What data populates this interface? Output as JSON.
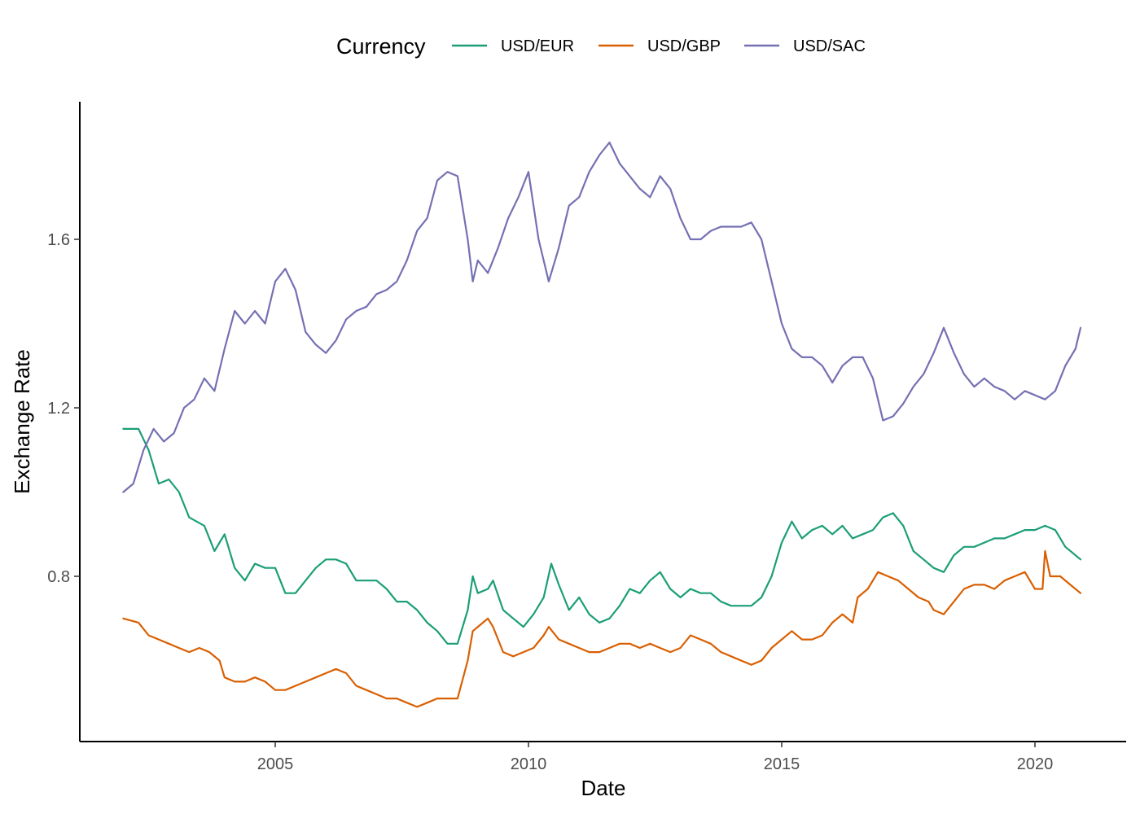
{
  "chart_data": {
    "type": "line",
    "xlabel": "Date",
    "ylabel": "Exchange Rate",
    "legend": {
      "title": "Currency",
      "placement": "top"
    },
    "xlim": [
      2002.0,
      2021.5
    ],
    "ylim": [
      0.45,
      1.9
    ],
    "x_ticks": [
      2005,
      2010,
      2015,
      2020
    ],
    "x_tick_labels": [
      "2005",
      "2010",
      "2015",
      "2020"
    ],
    "y_ticks": [
      0.8,
      1.2,
      1.6
    ],
    "y_tick_labels": [
      "0.8",
      "1.2",
      "1.6"
    ],
    "grid": false,
    "series": [
      {
        "name": "USD/EUR",
        "color": "#1B9E77",
        "points": [
          [
            2002.0,
            1.15
          ],
          [
            2002.3,
            1.15
          ],
          [
            2002.5,
            1.1
          ],
          [
            2002.7,
            1.02
          ],
          [
            2002.9,
            1.03
          ],
          [
            2003.1,
            1.0
          ],
          [
            2003.3,
            0.94
          ],
          [
            2003.6,
            0.92
          ],
          [
            2003.8,
            0.86
          ],
          [
            2004.0,
            0.9
          ],
          [
            2004.2,
            0.82
          ],
          [
            2004.4,
            0.79
          ],
          [
            2004.6,
            0.83
          ],
          [
            2004.8,
            0.82
          ],
          [
            2005.0,
            0.82
          ],
          [
            2005.2,
            0.76
          ],
          [
            2005.4,
            0.76
          ],
          [
            2005.6,
            0.79
          ],
          [
            2005.8,
            0.82
          ],
          [
            2006.0,
            0.84
          ],
          [
            2006.2,
            0.84
          ],
          [
            2006.4,
            0.83
          ],
          [
            2006.6,
            0.79
          ],
          [
            2006.8,
            0.79
          ],
          [
            2007.0,
            0.79
          ],
          [
            2007.2,
            0.77
          ],
          [
            2007.4,
            0.74
          ],
          [
            2007.6,
            0.74
          ],
          [
            2007.8,
            0.72
          ],
          [
            2008.0,
            0.69
          ],
          [
            2008.2,
            0.67
          ],
          [
            2008.4,
            0.64
          ],
          [
            2008.6,
            0.64
          ],
          [
            2008.8,
            0.72
          ],
          [
            2008.9,
            0.8
          ],
          [
            2009.0,
            0.76
          ],
          [
            2009.2,
            0.77
          ],
          [
            2009.3,
            0.79
          ],
          [
            2009.5,
            0.72
          ],
          [
            2009.7,
            0.7
          ],
          [
            2009.9,
            0.68
          ],
          [
            2010.1,
            0.71
          ],
          [
            2010.3,
            0.75
          ],
          [
            2010.45,
            0.83
          ],
          [
            2010.6,
            0.78
          ],
          [
            2010.8,
            0.72
          ],
          [
            2011.0,
            0.75
          ],
          [
            2011.2,
            0.71
          ],
          [
            2011.4,
            0.69
          ],
          [
            2011.6,
            0.7
          ],
          [
            2011.8,
            0.73
          ],
          [
            2012.0,
            0.77
          ],
          [
            2012.2,
            0.76
          ],
          [
            2012.4,
            0.79
          ],
          [
            2012.6,
            0.81
          ],
          [
            2012.8,
            0.77
          ],
          [
            2013.0,
            0.75
          ],
          [
            2013.2,
            0.77
          ],
          [
            2013.4,
            0.76
          ],
          [
            2013.6,
            0.76
          ],
          [
            2013.8,
            0.74
          ],
          [
            2014.0,
            0.73
          ],
          [
            2014.2,
            0.73
          ],
          [
            2014.4,
            0.73
          ],
          [
            2014.6,
            0.75
          ],
          [
            2014.8,
            0.8
          ],
          [
            2015.0,
            0.88
          ],
          [
            2015.2,
            0.93
          ],
          [
            2015.4,
            0.89
          ],
          [
            2015.6,
            0.91
          ],
          [
            2015.8,
            0.92
          ],
          [
            2016.0,
            0.9
          ],
          [
            2016.2,
            0.92
          ],
          [
            2016.4,
            0.89
          ],
          [
            2016.6,
            0.9
          ],
          [
            2016.8,
            0.91
          ],
          [
            2017.0,
            0.94
          ],
          [
            2017.2,
            0.95
          ],
          [
            2017.4,
            0.92
          ],
          [
            2017.6,
            0.86
          ],
          [
            2017.8,
            0.84
          ],
          [
            2018.0,
            0.82
          ],
          [
            2018.2,
            0.81
          ],
          [
            2018.4,
            0.85
          ],
          [
            2018.6,
            0.87
          ],
          [
            2018.8,
            0.87
          ],
          [
            2019.0,
            0.88
          ],
          [
            2019.2,
            0.89
          ],
          [
            2019.4,
            0.89
          ],
          [
            2019.6,
            0.9
          ],
          [
            2019.8,
            0.91
          ],
          [
            2020.0,
            0.91
          ],
          [
            2020.2,
            0.92
          ],
          [
            2020.4,
            0.91
          ],
          [
            2020.6,
            0.87
          ],
          [
            2020.8,
            0.85
          ],
          [
            2020.9,
            0.84
          ]
        ]
      },
      {
        "name": "USD/GBP",
        "color": "#D95F02",
        "points": [
          [
            2002.0,
            0.7
          ],
          [
            2002.3,
            0.69
          ],
          [
            2002.5,
            0.66
          ],
          [
            2002.7,
            0.65
          ],
          [
            2002.9,
            0.64
          ],
          [
            2003.1,
            0.63
          ],
          [
            2003.3,
            0.62
          ],
          [
            2003.5,
            0.63
          ],
          [
            2003.7,
            0.62
          ],
          [
            2003.9,
            0.6
          ],
          [
            2004.0,
            0.56
          ],
          [
            2004.2,
            0.55
          ],
          [
            2004.4,
            0.55
          ],
          [
            2004.6,
            0.56
          ],
          [
            2004.8,
            0.55
          ],
          [
            2005.0,
            0.53
          ],
          [
            2005.2,
            0.53
          ],
          [
            2005.4,
            0.54
          ],
          [
            2005.6,
            0.55
          ],
          [
            2005.8,
            0.56
          ],
          [
            2006.0,
            0.57
          ],
          [
            2006.2,
            0.58
          ],
          [
            2006.4,
            0.57
          ],
          [
            2006.6,
            0.54
          ],
          [
            2006.8,
            0.53
          ],
          [
            2007.0,
            0.52
          ],
          [
            2007.2,
            0.51
          ],
          [
            2007.4,
            0.51
          ],
          [
            2007.6,
            0.5
          ],
          [
            2007.8,
            0.49
          ],
          [
            2008.0,
            0.5
          ],
          [
            2008.2,
            0.51
          ],
          [
            2008.4,
            0.51
          ],
          [
            2008.6,
            0.51
          ],
          [
            2008.8,
            0.6
          ],
          [
            2008.9,
            0.67
          ],
          [
            2009.0,
            0.68
          ],
          [
            2009.2,
            0.7
          ],
          [
            2009.3,
            0.68
          ],
          [
            2009.5,
            0.62
          ],
          [
            2009.7,
            0.61
          ],
          [
            2009.9,
            0.62
          ],
          [
            2010.1,
            0.63
          ],
          [
            2010.3,
            0.66
          ],
          [
            2010.4,
            0.68
          ],
          [
            2010.6,
            0.65
          ],
          [
            2010.8,
            0.64
          ],
          [
            2011.0,
            0.63
          ],
          [
            2011.2,
            0.62
          ],
          [
            2011.4,
            0.62
          ],
          [
            2011.6,
            0.63
          ],
          [
            2011.8,
            0.64
          ],
          [
            2012.0,
            0.64
          ],
          [
            2012.2,
            0.63
          ],
          [
            2012.4,
            0.64
          ],
          [
            2012.6,
            0.63
          ],
          [
            2012.8,
            0.62
          ],
          [
            2013.0,
            0.63
          ],
          [
            2013.2,
            0.66
          ],
          [
            2013.4,
            0.65
          ],
          [
            2013.6,
            0.64
          ],
          [
            2013.8,
            0.62
          ],
          [
            2014.0,
            0.61
          ],
          [
            2014.2,
            0.6
          ],
          [
            2014.4,
            0.59
          ],
          [
            2014.6,
            0.6
          ],
          [
            2014.8,
            0.63
          ],
          [
            2015.0,
            0.65
          ],
          [
            2015.2,
            0.67
          ],
          [
            2015.4,
            0.65
          ],
          [
            2015.6,
            0.65
          ],
          [
            2015.8,
            0.66
          ],
          [
            2016.0,
            0.69
          ],
          [
            2016.2,
            0.71
          ],
          [
            2016.4,
            0.69
          ],
          [
            2016.5,
            0.75
          ],
          [
            2016.7,
            0.77
          ],
          [
            2016.9,
            0.81
          ],
          [
            2017.1,
            0.8
          ],
          [
            2017.3,
            0.79
          ],
          [
            2017.5,
            0.77
          ],
          [
            2017.7,
            0.75
          ],
          [
            2017.9,
            0.74
          ],
          [
            2018.0,
            0.72
          ],
          [
            2018.2,
            0.71
          ],
          [
            2018.4,
            0.74
          ],
          [
            2018.6,
            0.77
          ],
          [
            2018.8,
            0.78
          ],
          [
            2019.0,
            0.78
          ],
          [
            2019.2,
            0.77
          ],
          [
            2019.4,
            0.79
          ],
          [
            2019.6,
            0.8
          ],
          [
            2019.8,
            0.81
          ],
          [
            2020.0,
            0.77
          ],
          [
            2020.15,
            0.77
          ],
          [
            2020.2,
            0.86
          ],
          [
            2020.3,
            0.8
          ],
          [
            2020.5,
            0.8
          ],
          [
            2020.7,
            0.78
          ],
          [
            2020.9,
            0.76
          ]
        ]
      },
      {
        "name": "USD/SAC",
        "color": "#7570B3",
        "points": [
          [
            2002.0,
            1.0
          ],
          [
            2002.2,
            1.02
          ],
          [
            2002.4,
            1.1
          ],
          [
            2002.6,
            1.15
          ],
          [
            2002.8,
            1.12
          ],
          [
            2003.0,
            1.14
          ],
          [
            2003.2,
            1.2
          ],
          [
            2003.4,
            1.22
          ],
          [
            2003.6,
            1.27
          ],
          [
            2003.8,
            1.24
          ],
          [
            2004.0,
            1.34
          ],
          [
            2004.2,
            1.43
          ],
          [
            2004.4,
            1.4
          ],
          [
            2004.6,
            1.43
          ],
          [
            2004.8,
            1.4
          ],
          [
            2005.0,
            1.5
          ],
          [
            2005.2,
            1.53
          ],
          [
            2005.4,
            1.48
          ],
          [
            2005.6,
            1.38
          ],
          [
            2005.8,
            1.35
          ],
          [
            2006.0,
            1.33
          ],
          [
            2006.2,
            1.36
          ],
          [
            2006.4,
            1.41
          ],
          [
            2006.6,
            1.43
          ],
          [
            2006.8,
            1.44
          ],
          [
            2007.0,
            1.47
          ],
          [
            2007.2,
            1.48
          ],
          [
            2007.4,
            1.5
          ],
          [
            2007.6,
            1.55
          ],
          [
            2007.8,
            1.62
          ],
          [
            2008.0,
            1.65
          ],
          [
            2008.2,
            1.74
          ],
          [
            2008.4,
            1.76
          ],
          [
            2008.6,
            1.75
          ],
          [
            2008.8,
            1.6
          ],
          [
            2008.9,
            1.5
          ],
          [
            2009.0,
            1.55
          ],
          [
            2009.2,
            1.52
          ],
          [
            2009.4,
            1.58
          ],
          [
            2009.6,
            1.65
          ],
          [
            2009.8,
            1.7
          ],
          [
            2010.0,
            1.76
          ],
          [
            2010.2,
            1.6
          ],
          [
            2010.4,
            1.5
          ],
          [
            2010.6,
            1.58
          ],
          [
            2010.8,
            1.68
          ],
          [
            2011.0,
            1.7
          ],
          [
            2011.2,
            1.76
          ],
          [
            2011.4,
            1.8
          ],
          [
            2011.6,
            1.83
          ],
          [
            2011.8,
            1.78
          ],
          [
            2012.0,
            1.75
          ],
          [
            2012.2,
            1.72
          ],
          [
            2012.4,
            1.7
          ],
          [
            2012.6,
            1.75
          ],
          [
            2012.8,
            1.72
          ],
          [
            2013.0,
            1.65
          ],
          [
            2013.2,
            1.6
          ],
          [
            2013.4,
            1.6
          ],
          [
            2013.6,
            1.62
          ],
          [
            2013.8,
            1.63
          ],
          [
            2014.0,
            1.63
          ],
          [
            2014.2,
            1.63
          ],
          [
            2014.4,
            1.64
          ],
          [
            2014.6,
            1.6
          ],
          [
            2014.8,
            1.5
          ],
          [
            2015.0,
            1.4
          ],
          [
            2015.2,
            1.34
          ],
          [
            2015.4,
            1.32
          ],
          [
            2015.6,
            1.32
          ],
          [
            2015.8,
            1.3
          ],
          [
            2016.0,
            1.26
          ],
          [
            2016.2,
            1.3
          ],
          [
            2016.4,
            1.32
          ],
          [
            2016.6,
            1.32
          ],
          [
            2016.8,
            1.27
          ],
          [
            2017.0,
            1.17
          ],
          [
            2017.2,
            1.18
          ],
          [
            2017.4,
            1.21
          ],
          [
            2017.6,
            1.25
          ],
          [
            2017.8,
            1.28
          ],
          [
            2018.0,
            1.33
          ],
          [
            2018.2,
            1.39
          ],
          [
            2018.4,
            1.33
          ],
          [
            2018.6,
            1.28
          ],
          [
            2018.8,
            1.25
          ],
          [
            2019.0,
            1.27
          ],
          [
            2019.2,
            1.25
          ],
          [
            2019.4,
            1.24
          ],
          [
            2019.6,
            1.22
          ],
          [
            2019.8,
            1.24
          ],
          [
            2020.0,
            1.23
          ],
          [
            2020.2,
            1.22
          ],
          [
            2020.4,
            1.24
          ],
          [
            2020.6,
            1.3
          ],
          [
            2020.8,
            1.34
          ],
          [
            2020.9,
            1.39
          ]
        ]
      }
    ]
  }
}
